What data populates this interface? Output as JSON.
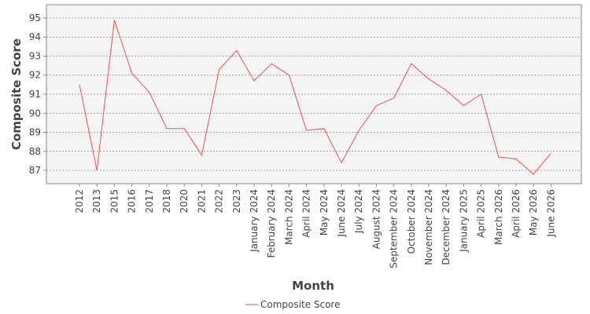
{
  "chart_data": {
    "type": "line",
    "xlabel": "Month",
    "ylabel": "Composite Score",
    "categories": [
      "2012",
      "2013",
      "2015",
      "2016",
      "2017",
      "2018",
      "2020",
      "2021",
      "2022",
      "2023",
      "January 2024",
      "February 2024",
      "March 2024",
      "April 2024",
      "May 2024",
      "June 2024",
      "July 2024",
      "August 2024",
      "September 2024",
      "October 2024",
      "November 2024",
      "December 2024",
      "January 2025",
      "April 2025",
      "March 2026",
      "April 2026",
      "May 2026",
      "June 2026"
    ],
    "series": [
      {
        "name": "Composite Score",
        "color": "#f05050",
        "values": [
          91.5,
          87.0,
          94.9,
          92.1,
          91.1,
          89.2,
          89.2,
          87.8,
          92.3,
          93.3,
          91.7,
          92.6,
          92.0,
          89.1,
          89.2,
          87.4,
          89.1,
          90.4,
          90.8,
          92.6,
          91.8,
          91.2,
          90.4,
          91.0,
          87.7,
          87.6,
          86.8,
          87.9
        ]
      }
    ],
    "yticks": [
      87,
      88,
      89,
      90,
      91,
      92,
      93,
      94,
      95
    ],
    "ylim": [
      86.3,
      95.7
    ],
    "grid": true,
    "legend": "bottom-center",
    "colors": {
      "plot_background": "#f4f4f4",
      "grid": "#888888",
      "frame": "#888888"
    }
  }
}
